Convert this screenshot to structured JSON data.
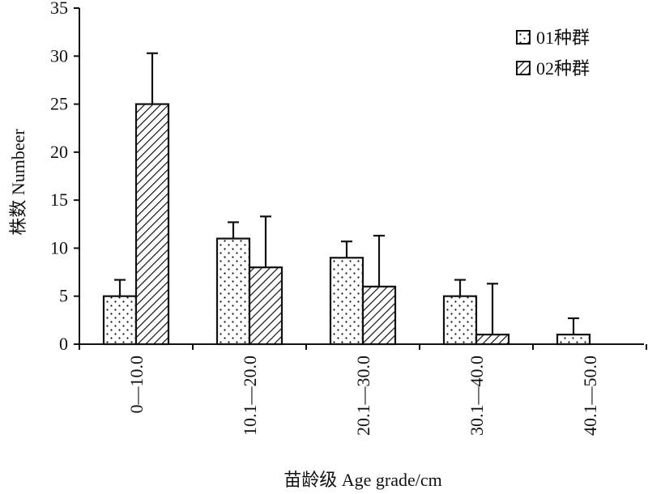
{
  "chart_data": {
    "type": "bar",
    "categories": [
      "0—10.0",
      "10.1—20.0",
      "20.1—30.0",
      "30.1—40.0",
      "40.1—50.0"
    ],
    "series": [
      {
        "name": "01种群",
        "values": [
          5,
          11,
          9,
          5,
          1
        ],
        "errors": [
          1.7,
          1.7,
          1.7,
          1.7,
          1.7
        ],
        "pattern": "dots"
      },
      {
        "name": "02种群",
        "values": [
          25,
          8,
          6,
          1,
          0
        ],
        "errors": [
          5.3,
          5.3,
          5.3,
          5.3,
          0
        ],
        "pattern": "diagonal-hatch"
      }
    ],
    "xlabel": "苗龄级 Age grade/cm",
    "ylabel": "株数 Numbeer",
    "ylim": [
      0,
      35
    ],
    "yticks": [
      "0",
      "5",
      "10",
      "15",
      "20",
      "25",
      "30",
      "35"
    ],
    "grid": false,
    "legend_position": "top-right",
    "colors": {
      "bar_fill": "#ffffff",
      "stroke": "#111111"
    }
  }
}
